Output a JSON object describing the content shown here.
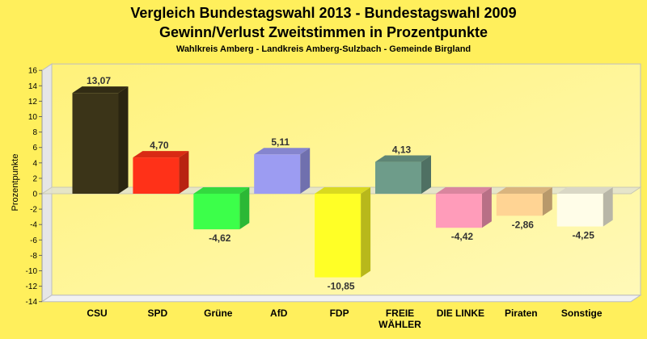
{
  "chart_data": {
    "type": "bar",
    "title": "Vergleich Bundestagswahl 2013 - Bundestagswahl 2009",
    "subtitle": "Gewinn/Verlust Zweitstimmen in Prozentpunkte",
    "subsubtitle": "Wahlkreis Amberg - Landkreis Amberg-Sulzbach - Gemeinde Birgland",
    "xlabel": "",
    "ylabel": "Prozentpunkte",
    "ylim": [
      -14,
      16
    ],
    "ytick_step": 2,
    "grid": false,
    "categories": [
      "CSU",
      "SPD",
      "Grüne",
      "AfD",
      "FDP",
      "FREIE WÄHLER",
      "DIE LINKE",
      "Piraten",
      "Sonstige"
    ],
    "category_lines": [
      [
        "CSU"
      ],
      [
        "SPD"
      ],
      [
        "Grüne"
      ],
      [
        "AfD"
      ],
      [
        "FDP"
      ],
      [
        "FREIE",
        "WÄHLER"
      ],
      [
        "DIE LINKE"
      ],
      [
        "Piraten"
      ],
      [
        "Sonstige"
      ]
    ],
    "values": [
      13.07,
      4.7,
      -4.62,
      5.11,
      -10.85,
      4.13,
      -4.42,
      -2.86,
      -4.25
    ],
    "value_labels": [
      "13,07",
      "4,70",
      "-4,62",
      "5,11",
      "-10,85",
      "4,13",
      "-4,42",
      "-2,86",
      "-4,25"
    ],
    "colors": [
      "#3B3418",
      "#FF3118",
      "#3CFF4A",
      "#9C9CF2",
      "#FFFF26",
      "#6E9C8A",
      "#FF9CBA",
      "#FFD494",
      "#FFFDE8"
    ]
  }
}
